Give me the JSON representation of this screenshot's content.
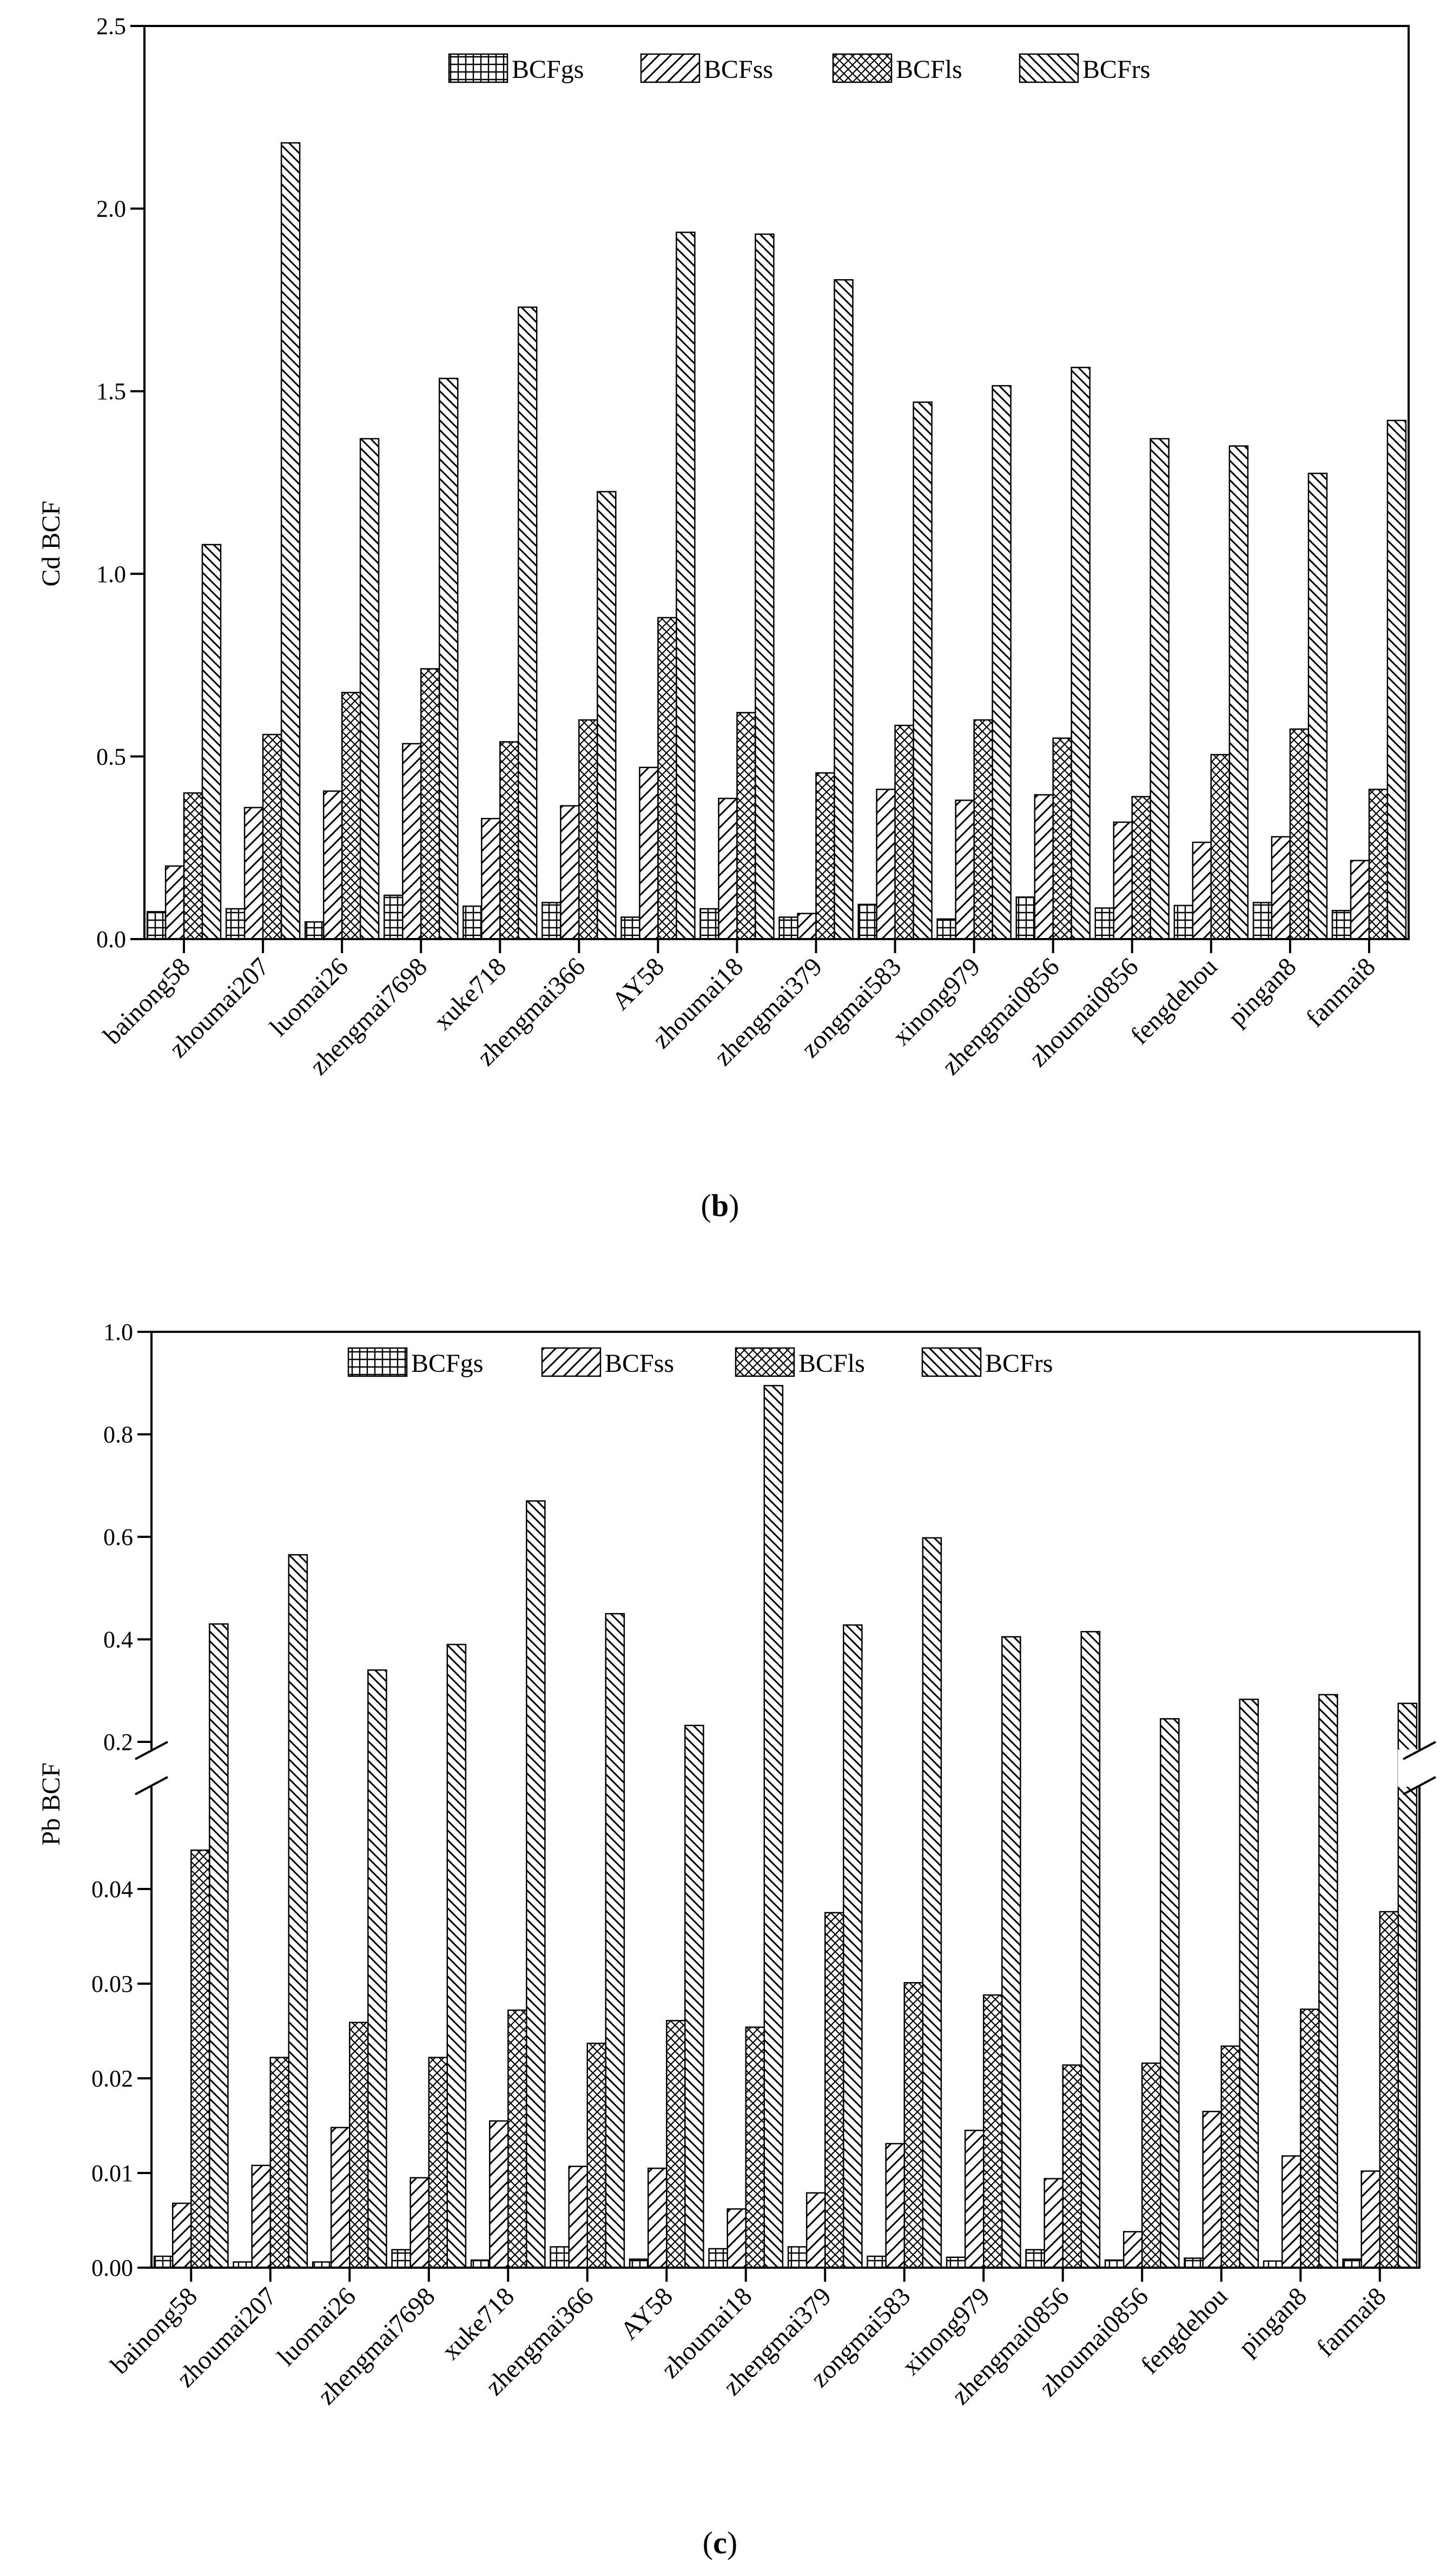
{
  "categories": [
    "bainong58",
    "zhoumai207",
    "luomai26",
    "zhengmai7698",
    "xuke718",
    "zhengmai366",
    "AY58",
    "zhoumai18",
    "zhengmai379",
    "zongmai583",
    "xinong979",
    "zhengmai0856",
    "zhoumai0856",
    "fengdehou",
    "pingan8",
    "fanmai8"
  ],
  "legend": [
    "BCFgs",
    "BCFss",
    "BCFls",
    "BCFrs"
  ],
  "panels": {
    "b": {
      "caption_open": "(",
      "caption_letter": "b",
      "caption_close": ")"
    },
    "c": {
      "caption_open": "(",
      "caption_letter": "c",
      "caption_close": ")"
    }
  },
  "chart_data": [
    {
      "type": "bar",
      "panel": "b",
      "title": "",
      "xlabel": "",
      "ylabel": "Cd BCF",
      "ylim": [
        0,
        2.5
      ],
      "yticks": [
        "0.0",
        "0.5",
        "1.0",
        "1.5",
        "2.0",
        "2.5"
      ],
      "legend_position": "top",
      "series": [
        {
          "name": "BCFgs",
          "values": [
            0.075,
            0.083,
            0.047,
            0.12,
            0.09,
            0.1,
            0.06,
            0.083,
            0.06,
            0.095,
            0.055,
            0.115,
            0.085,
            0.092,
            0.1,
            0.078
          ]
        },
        {
          "name": "BCFss",
          "values": [
            0.2,
            0.36,
            0.405,
            0.535,
            0.33,
            0.365,
            0.47,
            0.385,
            0.07,
            0.41,
            0.38,
            0.395,
            0.32,
            0.265,
            0.28,
            0.215
          ]
        },
        {
          "name": "BCFls",
          "values": [
            0.4,
            0.56,
            0.675,
            0.74,
            0.54,
            0.6,
            0.88,
            0.62,
            0.455,
            0.585,
            0.6,
            0.55,
            0.39,
            0.505,
            0.575,
            0.41
          ]
        },
        {
          "name": "BCFrs",
          "values": [
            1.08,
            2.18,
            1.37,
            1.535,
            1.73,
            1.225,
            1.935,
            1.93,
            1.805,
            1.47,
            1.515,
            1.565,
            1.37,
            1.35,
            1.275,
            1.42
          ]
        }
      ]
    },
    {
      "type": "bar",
      "panel": "c",
      "title": "",
      "xlabel": "",
      "ylabel": "Pb BCF",
      "ylim": [
        0,
        1.0
      ],
      "axis_break": {
        "lower_range": [
          0,
          0.05
        ],
        "upper_range": [
          0.2,
          1.0
        ]
      },
      "yticks_lower": [
        "0.00",
        "0.01",
        "0.02",
        "0.03",
        "0.04"
      ],
      "yticks_upper": [
        "0.2",
        "0.4",
        "0.6",
        "0.8",
        "1.0"
      ],
      "legend_position": "top",
      "series": [
        {
          "name": "BCFgs",
          "values": [
            0.0012,
            0.0006,
            0.0006,
            0.0019,
            0.0008,
            0.0022,
            0.0009,
            0.002,
            0.0022,
            0.0012,
            0.0011,
            0.0019,
            0.0008,
            0.001,
            0.0007,
            0.0009
          ]
        },
        {
          "name": "BCFss",
          "values": [
            0.0068,
            0.0108,
            0.0148,
            0.0095,
            0.0155,
            0.0107,
            0.0105,
            0.0062,
            0.0079,
            0.0131,
            0.0145,
            0.0094,
            0.0038,
            0.0165,
            0.0118,
            0.0102
          ]
        },
        {
          "name": "BCFls",
          "values": [
            0.0441,
            0.0222,
            0.0259,
            0.0222,
            0.0272,
            0.0237,
            0.0261,
            0.0254,
            0.0375,
            0.0301,
            0.0288,
            0.0214,
            0.0216,
            0.0234,
            0.0273,
            0.0376
          ]
        },
        {
          "name": "BCFrs",
          "values": [
            0.43,
            0.565,
            0.34,
            0.39,
            0.67,
            0.45,
            0.232,
            0.895,
            0.428,
            0.598,
            0.405,
            0.415,
            0.245,
            0.283,
            0.292,
            0.275
          ]
        }
      ]
    }
  ]
}
